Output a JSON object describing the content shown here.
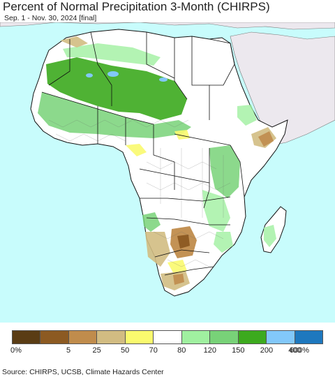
{
  "header": {
    "title": "Percent of Normal Precipitation 3-Month (CHIRPS)",
    "subtitle": "Sep. 1 - Nov. 30, 2024 [final]"
  },
  "map": {
    "ocean_color": "#c8fcfc",
    "land_color": "#ffffff",
    "other_land_color": "#ece8ee",
    "border_color": "#111111"
  },
  "legend": {
    "labels": [
      "0%",
      "5",
      "25",
      "50",
      "70",
      "80",
      "120",
      "150",
      "200",
      "400",
      "600%"
    ],
    "colors": [
      "#5a3c14",
      "#8c5a22",
      "#c08c4c",
      "#d2bc82",
      "#fafa6e",
      "#ffffff",
      "#a0f0a0",
      "#78d278",
      "#3caa1e",
      "#82c8fa",
      "#1e78be"
    ]
  },
  "footer": {
    "source": "Source: CHIRPS, UCSB, Climate Hazards Center"
  }
}
